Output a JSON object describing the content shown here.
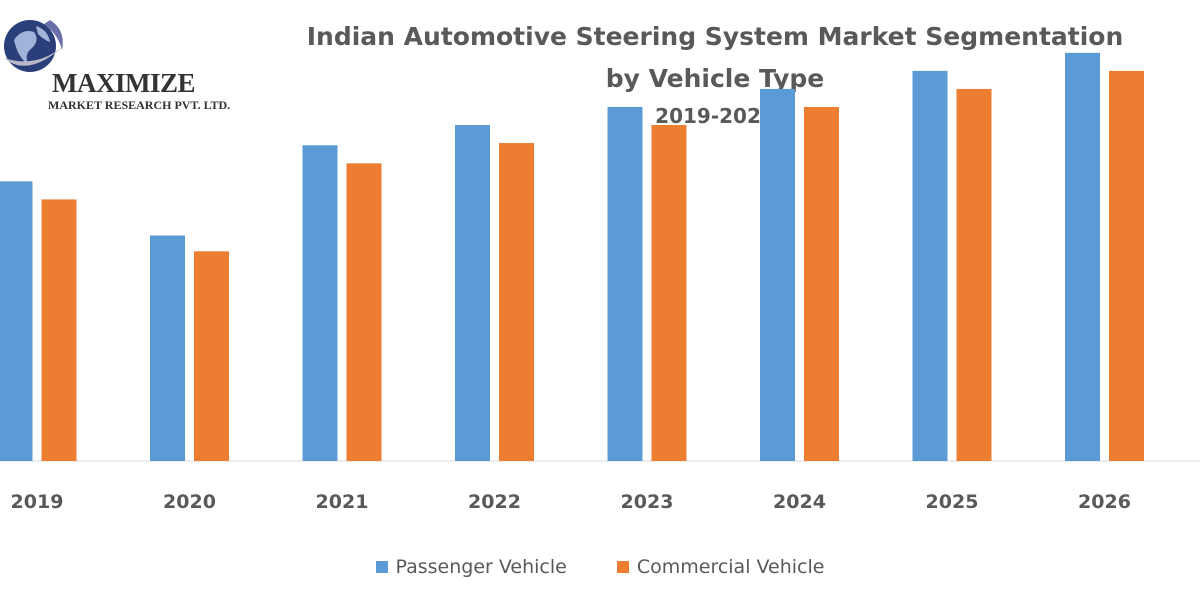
{
  "logo": {
    "name": "MAXIMIZE",
    "subtitle": "MARKET RESEARCH PVT. LTD."
  },
  "chart_data": {
    "type": "bar",
    "title_lines": [
      "Indian Automotive Steering System Market Segmentation",
      "by Vehicle Type"
    ],
    "subtitle": "2019-2026",
    "categories": [
      "2019",
      "2020",
      "2021",
      "2022",
      "2023",
      "2024",
      "2025",
      "2026"
    ],
    "series": [
      {
        "name": "Passenger Vehicle",
        "color": "#5B9BD5",
        "values": [
          62,
          50,
          70,
          74.5,
          78.5,
          82.5,
          86.5,
          90.5
        ]
      },
      {
        "name": "Commercial Vehicle",
        "color": "#ED7D31",
        "values": [
          58,
          46.5,
          66,
          70.5,
          74.5,
          78.5,
          82.5,
          86.5
        ]
      }
    ],
    "ylim": [
      0,
      100
    ],
    "grid": false,
    "legend_position": "bottom"
  }
}
